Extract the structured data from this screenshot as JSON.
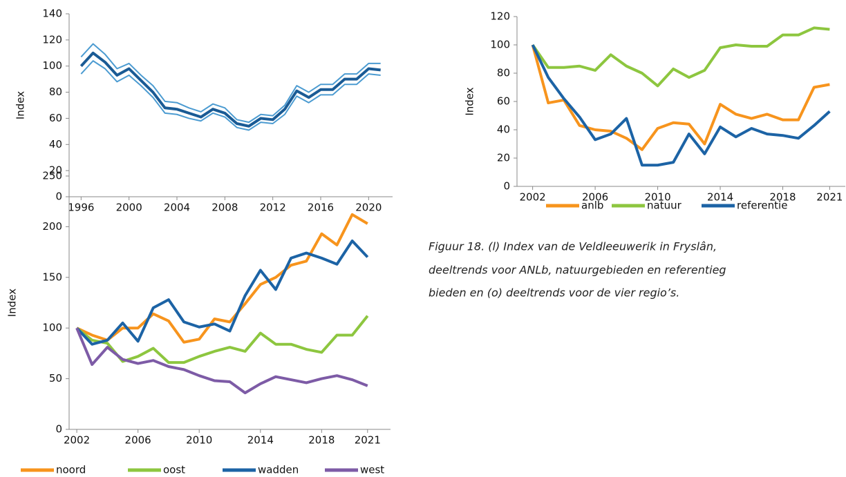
{
  "chart_data": [
    {
      "type": "line",
      "ylabel": "Index",
      "x": [
        1996,
        1997,
        1998,
        1999,
        2000,
        2001,
        2002,
        2003,
        2004,
        2005,
        2006,
        2007,
        2008,
        2009,
        2010,
        2011,
        2012,
        2013,
        2014,
        2015,
        2016,
        2017,
        2018,
        2019,
        2020,
        2021
      ],
      "series": [
        {
          "color": "#4b9bd1",
          "width": 2,
          "values": [
            107,
            117,
            109,
            98,
            102,
            93,
            85,
            73,
            72,
            68,
            65,
            71,
            68,
            59,
            57,
            63,
            62,
            70,
            85,
            80,
            86,
            86,
            94,
            94,
            102,
            102
          ]
        },
        {
          "color": "#4b9bd1",
          "width": 2,
          "values": [
            94,
            104,
            98,
            88,
            93,
            85,
            76,
            64,
            63,
            60,
            58,
            64,
            61,
            53,
            51,
            57,
            56,
            63,
            77,
            72,
            78,
            78,
            86,
            86,
            94,
            93
          ]
        },
        {
          "color": "#1a5b95",
          "width": 4,
          "values": [
            100,
            110,
            103,
            93,
            98,
            89,
            80,
            68,
            67,
            64,
            61,
            67,
            64,
            56,
            54,
            60,
            59,
            67,
            81,
            76,
            82,
            82,
            90,
            90,
            98,
            97
          ]
        }
      ],
      "xlim": [
        1995,
        2022
      ],
      "xticks": [
        1996,
        2000,
        2004,
        2008,
        2012,
        2016,
        2020
      ],
      "ylim": [
        0,
        140
      ],
      "yticks": [
        0,
        20,
        40,
        60,
        80,
        100,
        120,
        140
      ]
    },
    {
      "type": "line",
      "ylabel": "Index",
      "x": [
        2002,
        2003,
        2004,
        2005,
        2006,
        2007,
        2008,
        2009,
        2010,
        2011,
        2012,
        2013,
        2014,
        2015,
        2016,
        2017,
        2018,
        2019,
        2020,
        2021
      ],
      "series": [
        {
          "name": "anlb",
          "color": "#f7941d",
          "width": 4,
          "values": [
            100,
            59,
            61,
            43,
            40,
            39,
            34,
            26,
            41,
            45,
            44,
            30,
            58,
            51,
            48,
            51,
            47,
            47,
            70,
            72
          ]
        },
        {
          "name": "natuur",
          "color": "#8dc63f",
          "width": 4,
          "values": [
            100,
            84,
            84,
            85,
            82,
            93,
            85,
            80,
            71,
            83,
            77,
            82,
            98,
            100,
            99,
            99,
            107,
            107,
            112,
            111
          ]
        },
        {
          "name": "referentie",
          "color": "#1c63a5",
          "width": 4,
          "values": [
            100,
            77,
            62,
            49,
            33,
            37,
            48,
            15,
            15,
            17,
            37,
            23,
            42,
            35,
            41,
            37,
            36,
            34,
            43,
            53
          ]
        }
      ],
      "xlim": [
        2001,
        2022
      ],
      "xticks": [
        2002,
        2006,
        2010,
        2014,
        2018,
        2021
      ],
      "ylim": [
        0,
        120
      ],
      "yticks": [
        0,
        20,
        40,
        60,
        80,
        100,
        120
      ]
    },
    {
      "type": "line",
      "ylabel": "Index",
      "x": [
        2002,
        2003,
        2004,
        2005,
        2006,
        2007,
        2008,
        2009,
        2010,
        2011,
        2012,
        2013,
        2014,
        2015,
        2016,
        2017,
        2018,
        2019,
        2020,
        2021
      ],
      "series": [
        {
          "name": "noord",
          "color": "#f7941d",
          "width": 4,
          "values": [
            100,
            93,
            88,
            100,
            100,
            114,
            107,
            86,
            89,
            109,
            106,
            124,
            143,
            150,
            162,
            166,
            193,
            182,
            212,
            203
          ]
        },
        {
          "name": "oost",
          "color": "#8dc63f",
          "width": 4,
          "values": [
            100,
            88,
            85,
            67,
            72,
            80,
            66,
            66,
            72,
            77,
            81,
            77,
            95,
            84,
            84,
            79,
            76,
            93,
            93,
            112
          ]
        },
        {
          "name": "wadden",
          "color": "#1c63a5",
          "width": 4,
          "values": [
            100,
            84,
            88,
            105,
            87,
            120,
            128,
            106,
            101,
            104,
            97,
            132,
            157,
            138,
            169,
            174,
            169,
            163,
            186,
            170
          ]
        },
        {
          "name": "west",
          "color": "#7d5ba6",
          "width": 4,
          "values": [
            100,
            64,
            81,
            69,
            65,
            68,
            62,
            59,
            53,
            48,
            47,
            36,
            45,
            52,
            49,
            46,
            50,
            53,
            49,
            43
          ]
        }
      ],
      "xlim": [
        2001.5,
        2022.5
      ],
      "xticks": [
        2002,
        2006,
        2010,
        2014,
        2018,
        2021
      ],
      "ylim": [
        0,
        250
      ],
      "yticks": [
        0,
        50,
        100,
        150,
        200,
        250
      ]
    }
  ],
  "caption": [
    "Figuur 18. (l) Index van de Veldleeuwerik in Fryslân,",
    "deeltrends voor ANLb, natuurgebieden en referentieg",
    "bieden en (o) deeltrends voor de vier regio’s."
  ]
}
